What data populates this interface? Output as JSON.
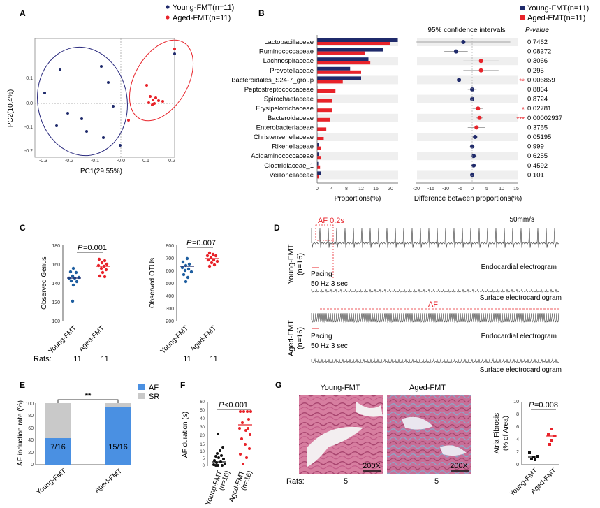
{
  "colors": {
    "young": "#1f2a6b",
    "aged": "#e8232a",
    "af_bar": "#4a90e2",
    "sr_bar": "#c9c9c9",
    "he_pink": "#d985a6"
  },
  "panelA": {
    "letter": "A",
    "legend": [
      "Young-FMT(n=11)",
      "Aged-FMT(n=11)"
    ],
    "xlabel": "PC1(29.55%)",
    "ylabel": "PC2(10.4%)",
    "xticks": [
      "-0.3",
      "-0.2",
      "-0.1",
      "-0.0",
      "0.1",
      "0.2"
    ],
    "yticks": [
      "0.1",
      "0.0",
      "-0.1",
      "-0.2"
    ]
  },
  "panelB": {
    "letter": "B",
    "legend": [
      "Young-FMT(n=11)",
      "Aged-FMT(n=11)"
    ],
    "ci_title": "95% confidence intervals",
    "pvalue_header": "P-value",
    "xlabel_left": "Proportions(%)",
    "xlabel_right": "Difference between proportions(%)",
    "xticks_left": [
      "0",
      "4",
      "8",
      "12",
      "16",
      "20"
    ],
    "xticks_right": [
      "-20",
      "-15",
      "-10",
      "-5",
      "0",
      "5",
      "10",
      "15"
    ],
    "taxa": [
      "Lactobacillaceae",
      "Ruminococcaceae",
      "Lachnospiraceae",
      "Prevotellaceae",
      "Bacteroidales_S24-7_group",
      "Peptostreptococcaceae",
      "Spirochaetaceae",
      "Erysipelotrichaceae",
      "Bacteroidaceae",
      "Enterobacteriaceae",
      "Christensenellaceae",
      "Rikenellaceae",
      "Acidaminococcaceae",
      "Clostridiaceae_1",
      "Veillonellaceae"
    ],
    "pvalues": [
      "0.7462",
      "0.08372",
      "0.3066",
      "0.295",
      "0.006859",
      "0.8864",
      "0.8724",
      "0.02781",
      "0.00002937",
      "0.3765",
      "0.05195",
      "0.999",
      "0.6255",
      "0.4592",
      "0.101"
    ],
    "stars": [
      "",
      "",
      "",
      "",
      "**",
      "",
      "",
      "*",
      "***",
      "",
      "",
      "",
      "",
      "",
      ""
    ]
  },
  "panelC": {
    "letter": "C",
    "charts": [
      {
        "ylabel": "Observed Genus",
        "pval_italic": "P",
        "pval_rest": "=0.001",
        "yticks": [
          "100",
          "120",
          "140",
          "160",
          "180"
        ]
      },
      {
        "ylabel": "Observed OTUs",
        "pval_italic": "P",
        "pval_rest": "=0.007",
        "yticks": [
          "200",
          "300",
          "400",
          "500",
          "600",
          "700",
          "800"
        ]
      }
    ],
    "groups": [
      "Young-FMT",
      "Aged-FMT"
    ],
    "rats_label": "Rats:",
    "rats": [
      "11",
      "11",
      "11",
      "11"
    ]
  },
  "panelD": {
    "letter": "D",
    "speed": "50mm/s",
    "young_label": "Young-FMT",
    "young_n": "(n=16)",
    "aged_label": "Aged-FMT",
    "aged_n": "(n=16)",
    "af_marker": "AF 0.2s",
    "af_label": "AF",
    "pacing": [
      "Pacing",
      "50 Hz 3 sec"
    ],
    "endo": "Endocardial electrogram",
    "surface": "Surface electrocardiogram"
  },
  "panelE": {
    "letter": "E",
    "ylabel": "AF induction rate (%)",
    "yticks": [
      "0",
      "20",
      "40",
      "60",
      "80",
      "100"
    ],
    "legend": [
      "AF",
      "SR"
    ],
    "bars": [
      "7/16",
      "15/16"
    ],
    "groups": [
      "Young-FMT",
      "Aged-FMT"
    ],
    "sig": "**"
  },
  "panelF": {
    "letter": "F",
    "ylabel": "AF duration (s)",
    "pval_italic": "P",
    "pval_rest": "<0.001",
    "yticks": [
      "0",
      "5",
      "10",
      "15",
      "20",
      "30",
      "40",
      "50",
      "60"
    ],
    "groups": [
      "Young-FMT",
      "Aged-FMT"
    ],
    "ns": [
      "(n=16)",
      "(n=16)"
    ]
  },
  "panelG": {
    "letter": "G",
    "titles": [
      "Young-FMT",
      "Aged-FMT"
    ],
    "mag": [
      "200X",
      "200X"
    ],
    "rats_label": "Rats:",
    "rats": [
      "5",
      "5"
    ],
    "ylabel": [
      "Atria Fibrosis",
      "(% of Area)"
    ],
    "pval_italic": "P",
    "pval_rest": "=0.008",
    "yticks": [
      "0",
      "2",
      "4",
      "6",
      "8",
      "10"
    ],
    "groups": [
      "Young-FMT",
      "Aged-FMT"
    ]
  }
}
